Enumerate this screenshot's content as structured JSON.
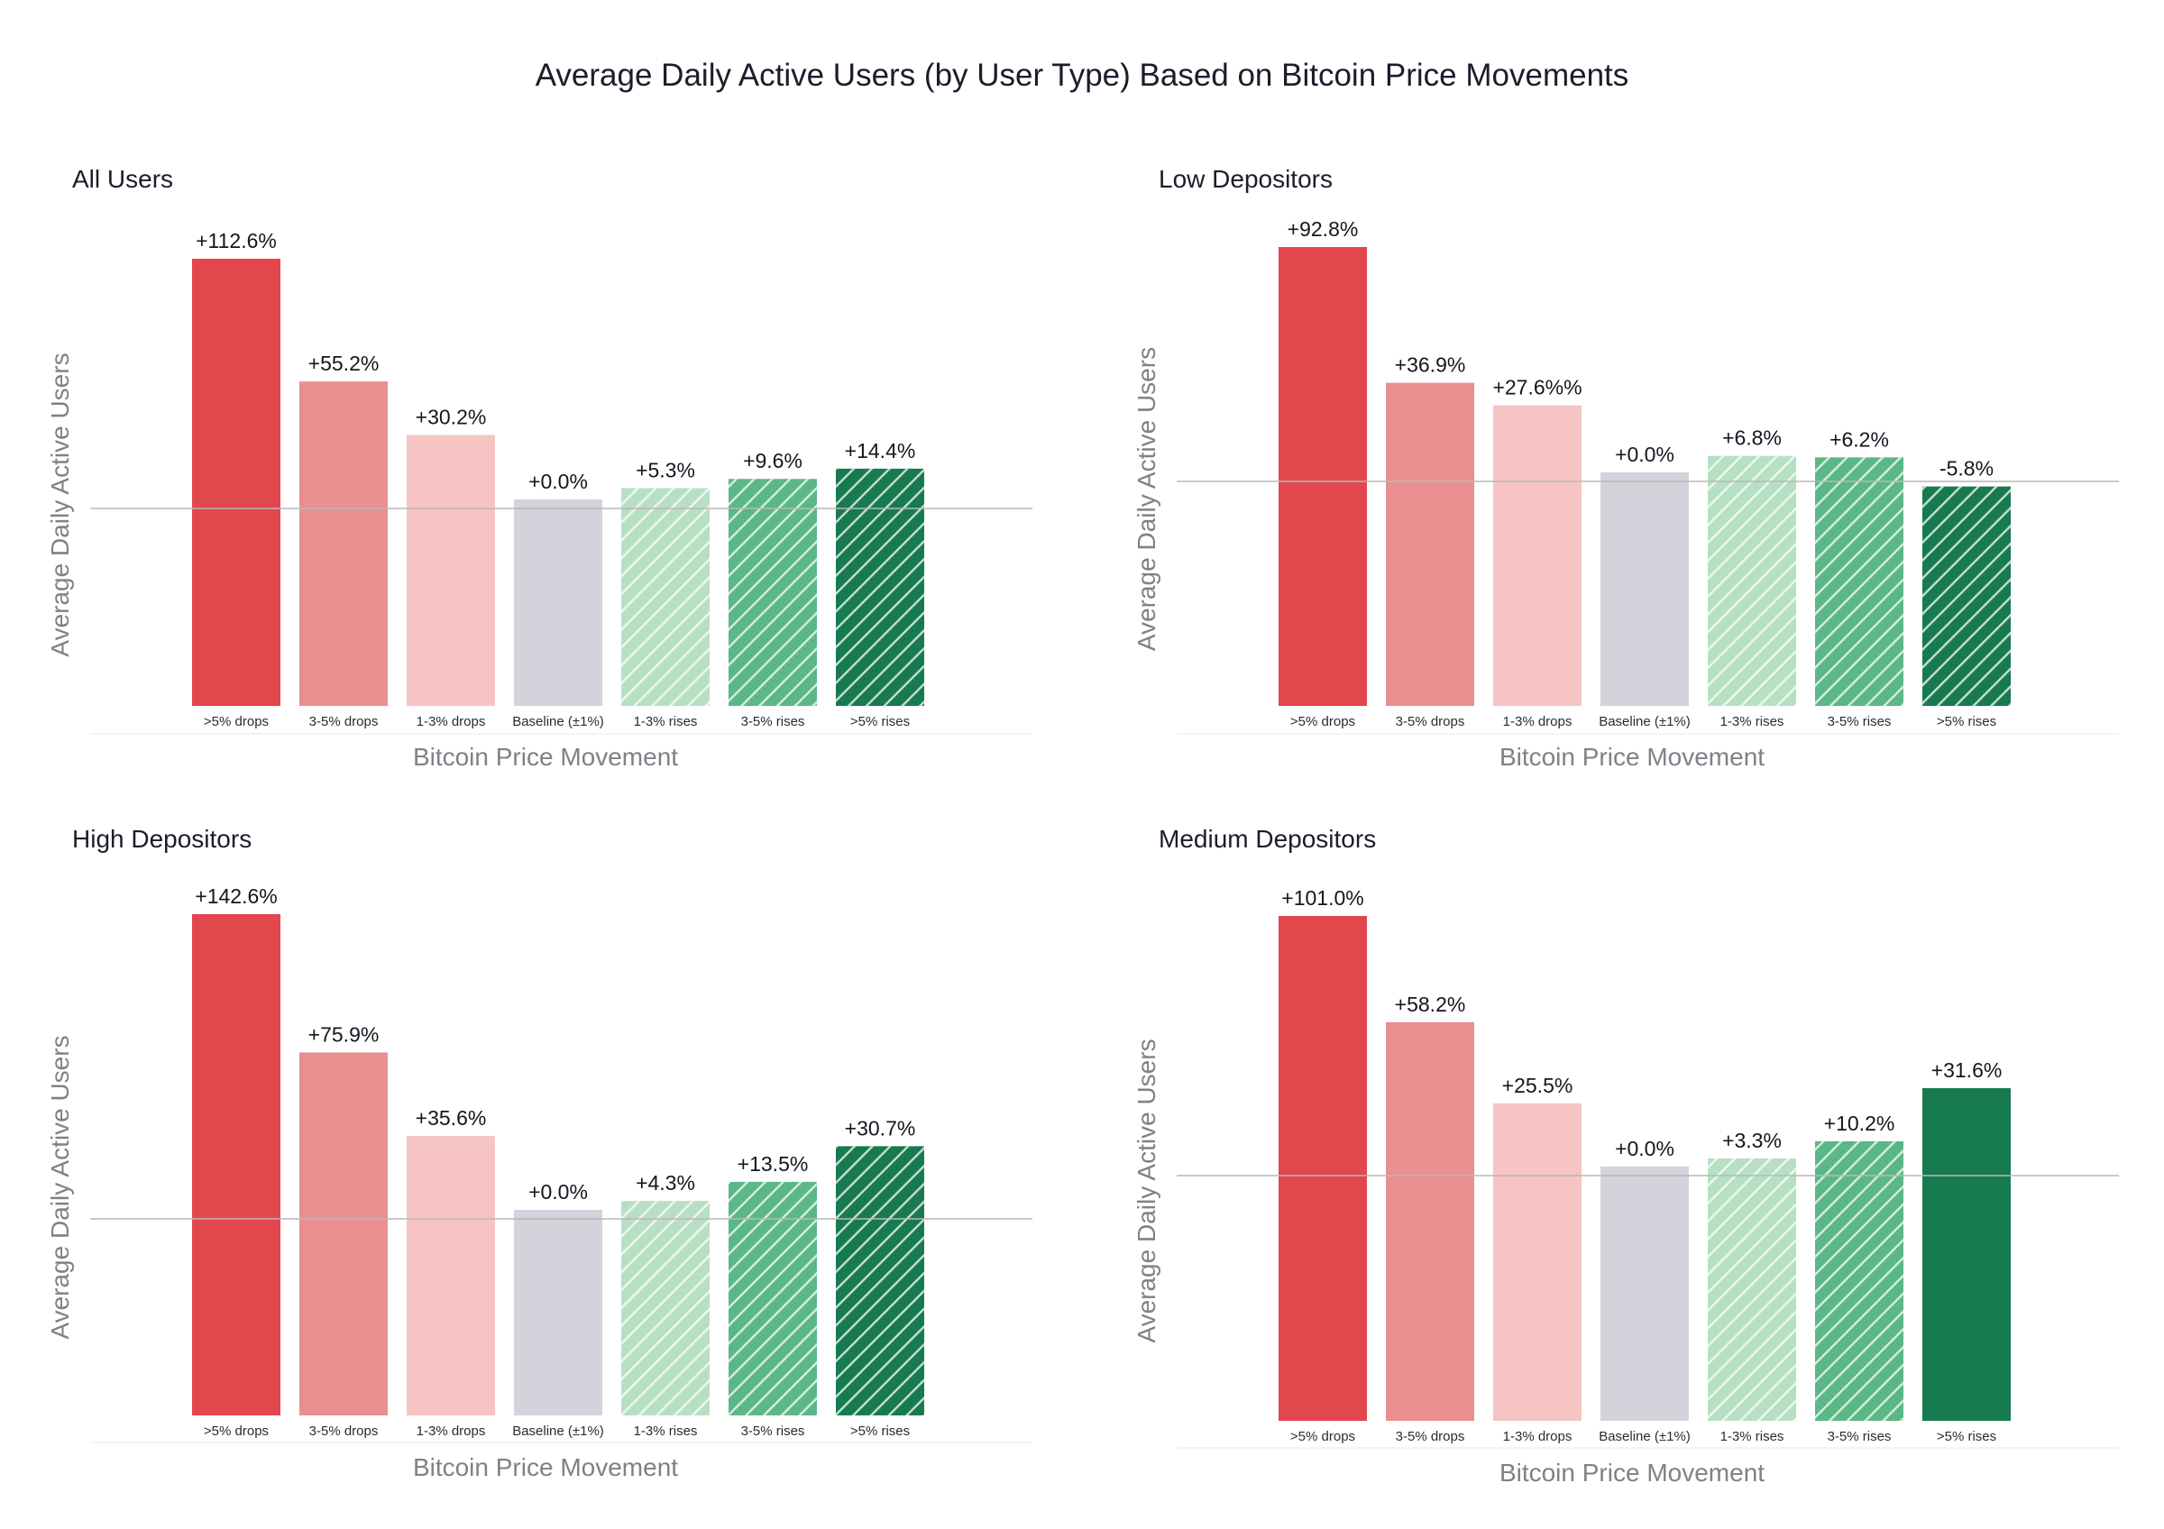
{
  "title": "Average Daily Active Users (by User Type) Based on Bitcoin Price Movements",
  "colors": {
    "strong_drop": "#e2474e",
    "mid_drop": "#e98f8f",
    "small_drop": "#f6c4c3",
    "baseline": "#d3d3dc",
    "small_rise": "#b7e0c3",
    "mid_rise": "#5ab887",
    "strong_rise": "#187a4f",
    "axis_text": "#808088",
    "zero_line": "#b8b8b8"
  },
  "chart_data": [
    {
      "type": "bar",
      "title": "All Users",
      "xlabel": "Bitcoin Price Movement",
      "ylabel": "Average Daily Active Users",
      "categories": [
        ">5% drops",
        "3-5% drops",
        "1-3% drops",
        "Baseline (±1%)",
        "1-3% rises",
        "3-5% rises",
        ">5% rises"
      ],
      "values": [
        112.6,
        55.2,
        30.2,
        0.0,
        5.3,
        9.6,
        14.4
      ],
      "labels": [
        "+112.6%",
        "+55.2%",
        "+30.2%",
        "+0.0%",
        "+5.3%",
        "+9.6%",
        "+14.4%"
      ],
      "hatched": [
        false,
        false,
        false,
        false,
        true,
        true,
        true
      ]
    },
    {
      "type": "bar",
      "title": "Low Depositors",
      "xlabel": "Bitcoin Price Movement",
      "ylabel": "Average Daily Active Users",
      "categories": [
        ">5% drops",
        "3-5% drops",
        "1-3% drops",
        "Baseline (±1%)",
        "1-3% rises",
        "3-5% rises",
        ">5% rises"
      ],
      "values": [
        92.8,
        36.9,
        27.6,
        0.0,
        6.8,
        6.2,
        -5.8
      ],
      "labels": [
        "+92.8%",
        "+36.9%",
        "+27.6%%",
        "+0.0%",
        "+6.8%",
        "+6.2%",
        "-5.8%"
      ],
      "hatched": [
        false,
        false,
        false,
        false,
        true,
        true,
        true
      ]
    },
    {
      "type": "bar",
      "title": "High Depositors",
      "xlabel": "Bitcoin Price Movement",
      "ylabel": "Average Daily Active Users",
      "categories": [
        ">5% drops",
        "3-5% drops",
        "1-3% drops",
        "Baseline (±1%)",
        "1-3% rises",
        "3-5% rises",
        ">5% rises"
      ],
      "values": [
        142.6,
        75.9,
        35.6,
        0.0,
        4.3,
        13.5,
        30.7
      ],
      "labels": [
        "+142.6%",
        "+75.9%",
        "+35.6%",
        "+0.0%",
        "+4.3%",
        "+13.5%",
        "+30.7%"
      ],
      "hatched": [
        false,
        false,
        false,
        false,
        true,
        true,
        true
      ]
    },
    {
      "type": "bar",
      "title": "Medium Depositors",
      "xlabel": "Bitcoin Price Movement",
      "ylabel": "Average Daily Active Users",
      "categories": [
        ">5% drops",
        "3-5% drops",
        "1-3% drops",
        "Baseline (±1%)",
        "1-3% rises",
        "3-5% rises",
        ">5% rises"
      ],
      "values": [
        101.0,
        58.2,
        25.5,
        0.0,
        3.3,
        10.2,
        31.6
      ],
      "labels": [
        "+101.0%",
        "+58.2%",
        "+25.5%",
        "+0.0%",
        "+3.3%",
        "+10.2%",
        "+31.6%"
      ],
      "hatched": [
        false,
        false,
        false,
        false,
        true,
        true,
        false
      ]
    }
  ]
}
